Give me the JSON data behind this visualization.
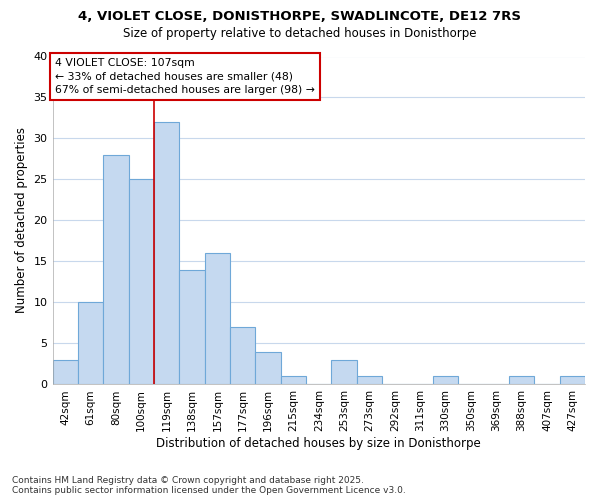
{
  "title_line1": "4, VIOLET CLOSE, DONISTHORPE, SWADLINCOTE, DE12 7RS",
  "title_line2": "Size of property relative to detached houses in Donisthorpe",
  "xlabel": "Distribution of detached houses by size in Donisthorpe",
  "ylabel": "Number of detached properties",
  "bar_labels": [
    "42sqm",
    "61sqm",
    "80sqm",
    "100sqm",
    "119sqm",
    "138sqm",
    "157sqm",
    "177sqm",
    "196sqm",
    "215sqm",
    "234sqm",
    "253sqm",
    "273sqm",
    "292sqm",
    "311sqm",
    "330sqm",
    "350sqm",
    "369sqm",
    "388sqm",
    "407sqm",
    "427sqm"
  ],
  "bar_values": [
    3,
    10,
    28,
    25,
    32,
    14,
    16,
    7,
    4,
    1,
    0,
    3,
    1,
    0,
    0,
    1,
    0,
    0,
    1,
    0,
    1
  ],
  "bar_color": "#c5d9f0",
  "bar_edgecolor": "#6fa8d8",
  "background_color": "#ffffff",
  "grid_color": "#c8d8ec",
  "vline_x": 3.5,
  "vline_color": "#cc0000",
  "annotation_text": "4 VIOLET CLOSE: 107sqm\n← 33% of detached houses are smaller (48)\n67% of semi-detached houses are larger (98) →",
  "annotation_box_color": "#ffffff",
  "annotation_box_edgecolor": "#cc0000",
  "ylim": [
    0,
    40
  ],
  "yticks": [
    0,
    5,
    10,
    15,
    20,
    25,
    30,
    35,
    40
  ],
  "footnote": "Contains HM Land Registry data © Crown copyright and database right 2025.\nContains public sector information licensed under the Open Government Licence v3.0."
}
